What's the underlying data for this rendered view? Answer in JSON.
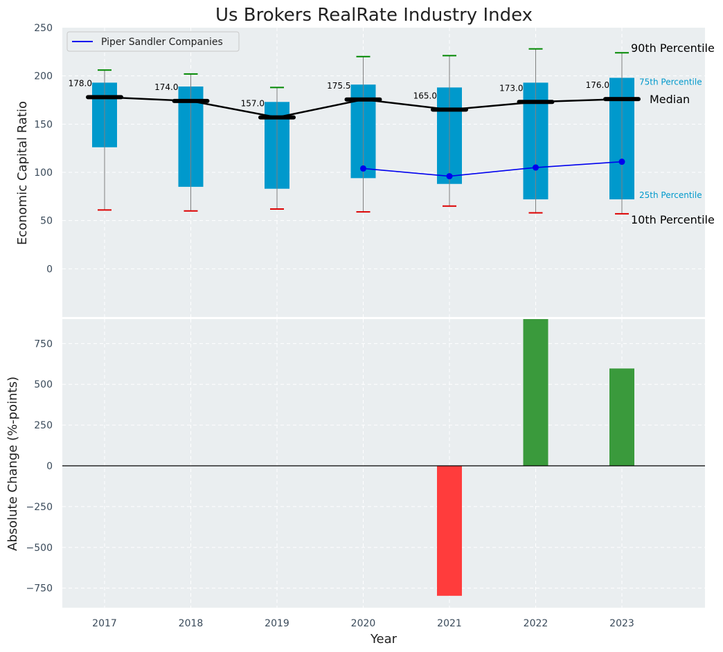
{
  "chart_data": {
    "type": "box",
    "title": "Us Brokers RealRate Industry Index",
    "xlabel": "Year",
    "categories": [
      "2017",
      "2018",
      "2019",
      "2020",
      "2021",
      "2022",
      "2023"
    ],
    "top_panel": {
      "ylabel": "Economic Capital Ratio",
      "ylim": [
        -50,
        250
      ],
      "yticks": [
        0,
        50,
        100,
        150,
        200,
        250
      ],
      "grid": true,
      "legend_position": "top-left",
      "percentiles": {
        "p10": [
          61,
          60,
          62,
          59,
          65,
          58,
          57
        ],
        "p25": [
          126,
          85,
          83,
          94,
          88,
          72,
          72
        ],
        "median": [
          178.0,
          174.0,
          157.0,
          175.5,
          165.0,
          173.0,
          176.0
        ],
        "p75": [
          193,
          189,
          173,
          191,
          188,
          193,
          198
        ],
        "p90": [
          206,
          202,
          188,
          220,
          221,
          228,
          224
        ]
      },
      "median_labels": [
        "178.0",
        "174.0",
        "157.0",
        "175.5",
        "165.0",
        "173.0",
        "176.0"
      ],
      "series": [
        {
          "name": "Piper Sandler Companies",
          "x": [
            "2020",
            "2021",
            "2022",
            "2023"
          ],
          "values": [
            104,
            96,
            105,
            111
          ],
          "color": "#0000ee"
        }
      ],
      "annotations": {
        "p90": "90th Percentile",
        "p75": "75th Percentile",
        "median": "Median",
        "p25": "25th Percentile",
        "p10": "10th Percentile"
      }
    },
    "bottom_panel": {
      "type": "bar",
      "ylabel": "Absolute Change (%-points)",
      "ylim": [
        -870,
        900
      ],
      "yticks": [
        -750,
        -500,
        -250,
        0,
        250,
        500,
        750
      ],
      "values": [
        0,
        0,
        0,
        0,
        -797,
        900,
        597
      ],
      "grid": true
    },
    "colors": {
      "panel_bg": "#eaeef0",
      "box": "#0099cc",
      "median": "#000000",
      "p90_cap": "#008800",
      "p10_cap": "#dd0000",
      "positive_bar": "#3a9a3c",
      "negative_bar": "#ff3c3c",
      "whisker": "#808080"
    }
  }
}
